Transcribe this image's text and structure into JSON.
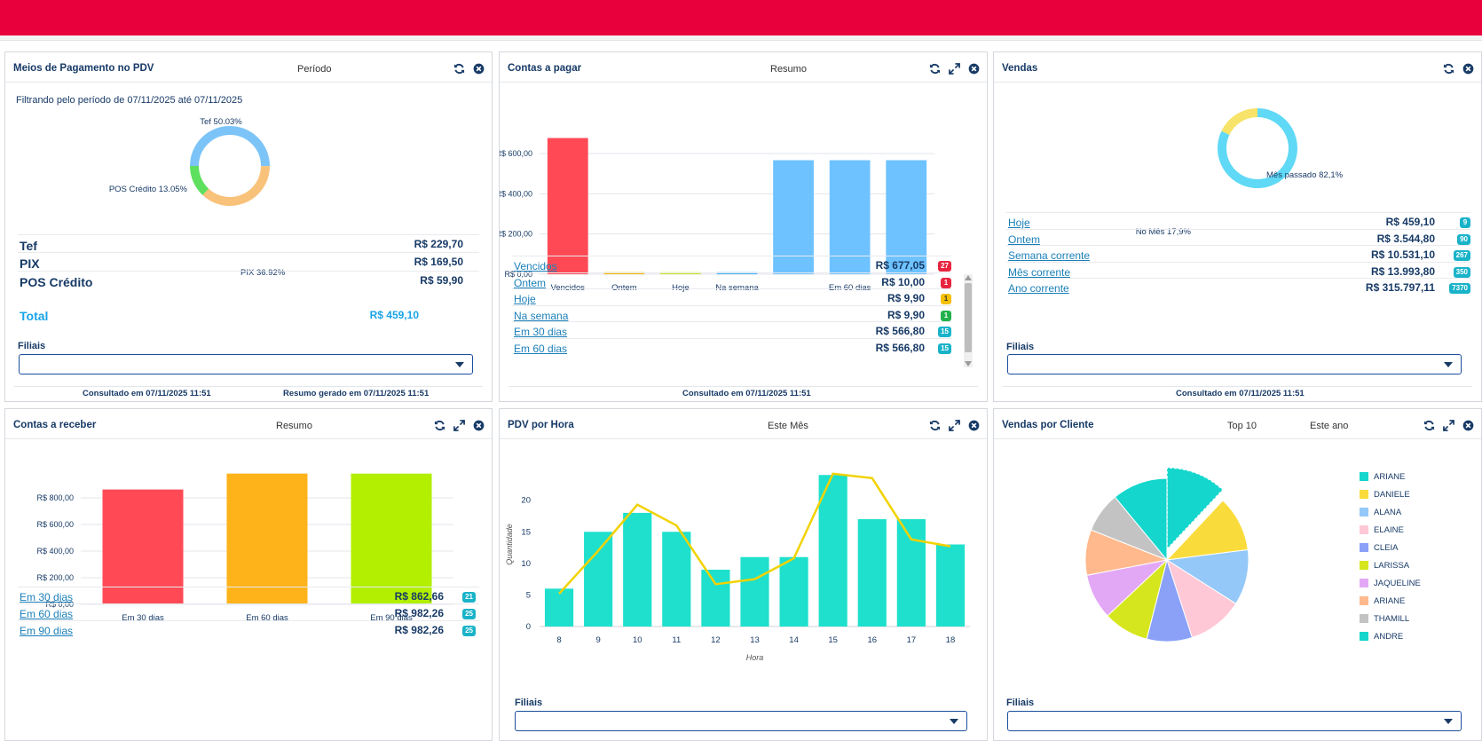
{
  "colors": {
    "topbar": "#e8003d",
    "accent": "#173a66",
    "link": "#1a7fb8"
  },
  "meios": {
    "title": "Meios de Pagamento no PDV",
    "subtitle": "Período",
    "filter_text": "Filtrando pelo período de 07/11/2025 até 07/11/2025",
    "donut": [
      {
        "label": "Tef 50.03%",
        "value": 50.03,
        "color": "#7cc4f8"
      },
      {
        "label": "PIX 36.92%",
        "value": 36.92,
        "color": "#f9c27a"
      },
      {
        "label": "POS Crédito 13.05%",
        "value": 13.05,
        "color": "#5ee05e"
      }
    ],
    "rows": [
      {
        "label": "Tef",
        "value": "R$ 229,70"
      },
      {
        "label": "PIX",
        "value": "R$ 169,50"
      },
      {
        "label": "POS Crédito",
        "value": "R$ 59,90"
      }
    ],
    "total_label": "Total",
    "total_value": "R$ 459,10",
    "filiais_label": "Filiais",
    "footer_left": "Consultado em 07/11/2025 11:51",
    "footer_right": "Resumo gerado em 07/11/2025 11:51"
  },
  "pagar": {
    "title": "Contas a pagar",
    "subtitle": "Resumo",
    "chart_data": {
      "type": "bar",
      "categories": [
        "Vencidos",
        "Ontem",
        "Hoje",
        "Na semana",
        "Em 30 dias",
        "Em 60 dias",
        ""
      ],
      "tick_labels": [
        "Vencidos",
        "Ontem",
        "Hoje",
        "Na semana",
        "",
        "Em 60 dias",
        ""
      ],
      "values": [
        677.05,
        10.0,
        9.9,
        9.9,
        566.8,
        566.8,
        566.8
      ],
      "colors": [
        "#ff4a55",
        "#f5b400",
        "#c7e81c",
        "#3fb0f5",
        "#6ec2ff",
        "#6ec2ff",
        "#6ec2ff"
      ],
      "yticks": [
        "R$ 0,00",
        "R$ 200,00",
        "R$ 400,00",
        "R$ 600,00"
      ],
      "ylim": [
        0,
        750
      ]
    },
    "rows": [
      {
        "label": "Vencidos",
        "value": "R$ 677,05",
        "badge": "27",
        "badge_class": "b-red"
      },
      {
        "label": "Ontem",
        "value": "R$ 10,00",
        "badge": "1",
        "badge_class": "b-red"
      },
      {
        "label": "Hoje",
        "value": "R$ 9,90",
        "badge": "1",
        "badge_class": "b-yel"
      },
      {
        "label": "Na semana",
        "value": "R$ 9,90",
        "badge": "1",
        "badge_class": "b-grn"
      },
      {
        "label": "Em 30 dias",
        "value": "R$ 566,80",
        "badge": "15",
        "badge_class": "b-cyan"
      },
      {
        "label": "Em 60 dias",
        "value": "R$ 566,80",
        "badge": "15",
        "badge_class": "b-cyan"
      }
    ],
    "footer": "Consultado em 07/11/2025 11:51"
  },
  "vendas": {
    "title": "Vendas",
    "donut": [
      {
        "label": "Mês passado 82,1%",
        "value": 82.1,
        "color": "#5fd9f5"
      },
      {
        "label": "No Mês 17,9%",
        "value": 17.9,
        "color": "#f7e36a"
      }
    ],
    "rows": [
      {
        "label": "Hoje",
        "value": "R$ 459,10",
        "badge": "9"
      },
      {
        "label": "Ontem",
        "value": "R$ 3.544,80",
        "badge": "90"
      },
      {
        "label": "Semana corrente",
        "value": "R$ 10.531,10",
        "badge": "267"
      },
      {
        "label": "Mês corrente",
        "value": "R$ 13.993,80",
        "badge": "350"
      },
      {
        "label": "Ano corrente",
        "value": "R$ 315.797,11",
        "badge": "7370"
      }
    ],
    "filiais_label": "Filiais",
    "footer": "Consultado em 07/11/2025 11:51"
  },
  "receber": {
    "title": "Contas a receber",
    "subtitle": "Resumo",
    "chart_data": {
      "type": "bar",
      "categories": [
        "Em 30 dias",
        "Em 60 dias",
        "Em 90 dias"
      ],
      "values": [
        862.66,
        982.26,
        982.26
      ],
      "colors": [
        "#ff4a55",
        "#ffb31a",
        "#b2ef00"
      ],
      "yticks": [
        "R$ 0,00",
        "R$ 200,00",
        "R$ 400,00",
        "R$ 600,00",
        "R$ 800,00"
      ],
      "ylim": [
        0,
        1000
      ]
    },
    "rows": [
      {
        "label": "Em 30 dias",
        "value": "R$ 862,66",
        "badge": "21"
      },
      {
        "label": "Em 60 dias",
        "value": "R$ 982,26",
        "badge": "25"
      },
      {
        "label": "Em 90 dias",
        "value": "R$ 982,26",
        "badge": "25"
      }
    ]
  },
  "pdv": {
    "title": "PDV por Hora",
    "subtitle": "Este Mês",
    "chart_data": {
      "type": "bar",
      "x": [
        "8",
        "9",
        "10",
        "11",
        "12",
        "13",
        "14",
        "15",
        "16",
        "17",
        "18"
      ],
      "values": [
        6,
        15,
        18,
        15,
        9,
        11,
        11,
        24,
        17,
        17,
        13
      ],
      "line": [
        5.2,
        12,
        19.3,
        16,
        6.7,
        7.5,
        10.8,
        24.2,
        23.5,
        13.8,
        12.7
      ],
      "yticks": [
        "0",
        "5",
        "10",
        "15",
        "20"
      ],
      "ylim": [
        0,
        25
      ],
      "xlabel": "Hora",
      "ylabel": "Quantidade",
      "bar_color": "#1fe0cd",
      "line_color": "#f2d200"
    },
    "filiais_label": "Filiais"
  },
  "cliente": {
    "title": "Vendas por Cliente",
    "subtitle1": "Top 10",
    "subtitle2": "Este ano",
    "chart_data": {
      "type": "pie",
      "labels": [
        "ARIANE",
        "DANIELE",
        "ALANA",
        "ELAINE",
        "CLEIA",
        "LARISSA",
        "JAQUELINE",
        "ARIANE",
        "THAMILL",
        "ANDRE"
      ],
      "values": [
        12,
        11,
        11,
        11,
        9,
        9,
        9,
        9,
        8,
        11
      ],
      "colors": [
        "#14d6cc",
        "#f9dc3c",
        "#93c8f8",
        "#ffc8d6",
        "#8aa1f7",
        "#d6e61e",
        "#e3a8f5",
        "#ffb98c",
        "#c3c3c3",
        "#14d6cc"
      ]
    },
    "filiais_label": "Filiais"
  }
}
